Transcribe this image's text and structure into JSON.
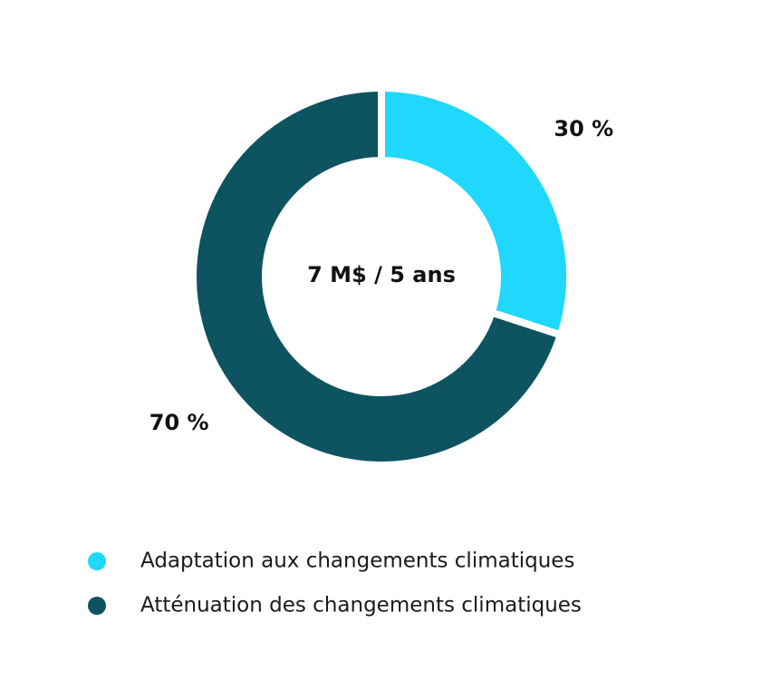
{
  "chart_data": {
    "type": "pie",
    "center_label": "7 M$ / 5 ans",
    "categories": [
      "Adaptation aux changements climatiques",
      "Atténuation des changements climatiques"
    ],
    "values": [
      30,
      70
    ],
    "value_labels": [
      "30 %",
      "70 %"
    ],
    "colors": [
      "#1fd8fc",
      "#0d5360"
    ]
  }
}
